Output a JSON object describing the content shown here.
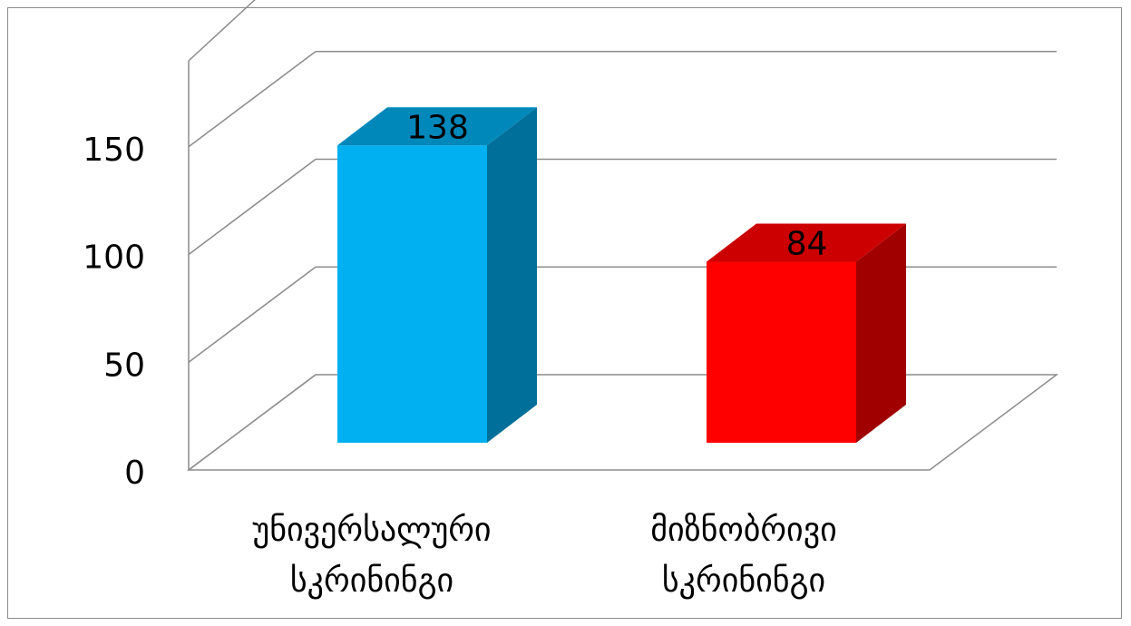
{
  "chart_data": {
    "type": "bar",
    "style": "3d",
    "categories": [
      [
        "უნივერსალური",
        "სკრინინგი"
      ],
      [
        "მიზნობრივი",
        "სკრინინგი"
      ]
    ],
    "values": [
      138,
      84
    ],
    "data_labels": [
      "138",
      "84"
    ],
    "y_ticks": [
      "0",
      "50",
      "100",
      "150"
    ],
    "ylim": [
      0,
      200
    ],
    "grid": true,
    "legend": "none",
    "colors": {
      "bars": [
        {
          "front": "#00b0f0",
          "side": "#006f99",
          "top": "#0088bb"
        },
        {
          "front": "#ff0000",
          "side": "#a00000",
          "top": "#cc0000"
        }
      ],
      "grid": "#8c8c8c"
    }
  }
}
